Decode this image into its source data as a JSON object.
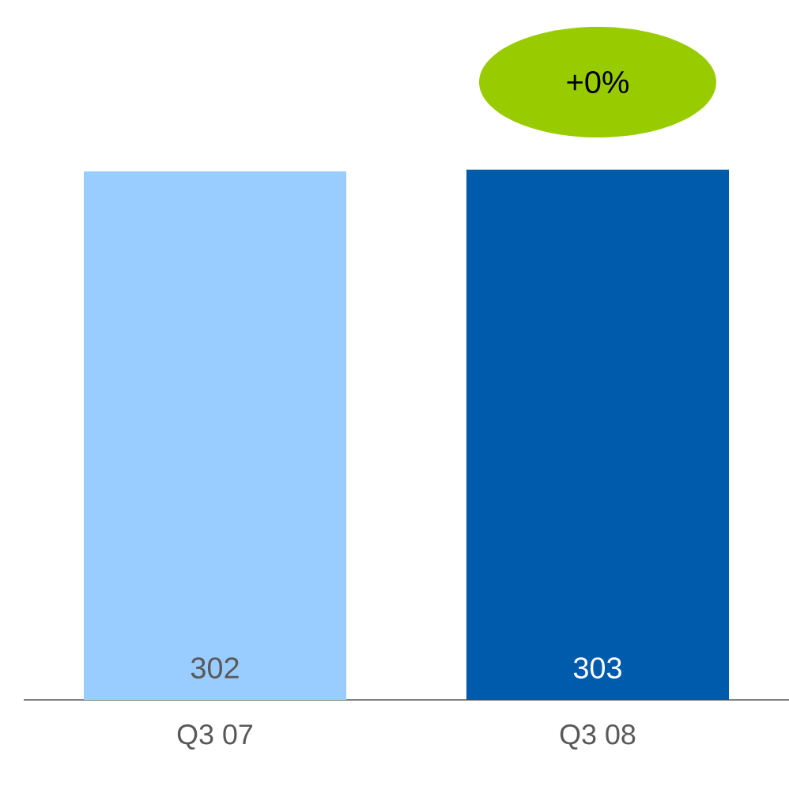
{
  "chart_data": {
    "type": "bar",
    "categories": [
      "Q3 07",
      "Q3 08"
    ],
    "values": [
      302,
      303
    ],
    "colors": [
      "#99ccff",
      "#005bac"
    ],
    "data_labels": true,
    "tick_labels": "x",
    "annotations": [
      "+0%"
    ]
  }
}
